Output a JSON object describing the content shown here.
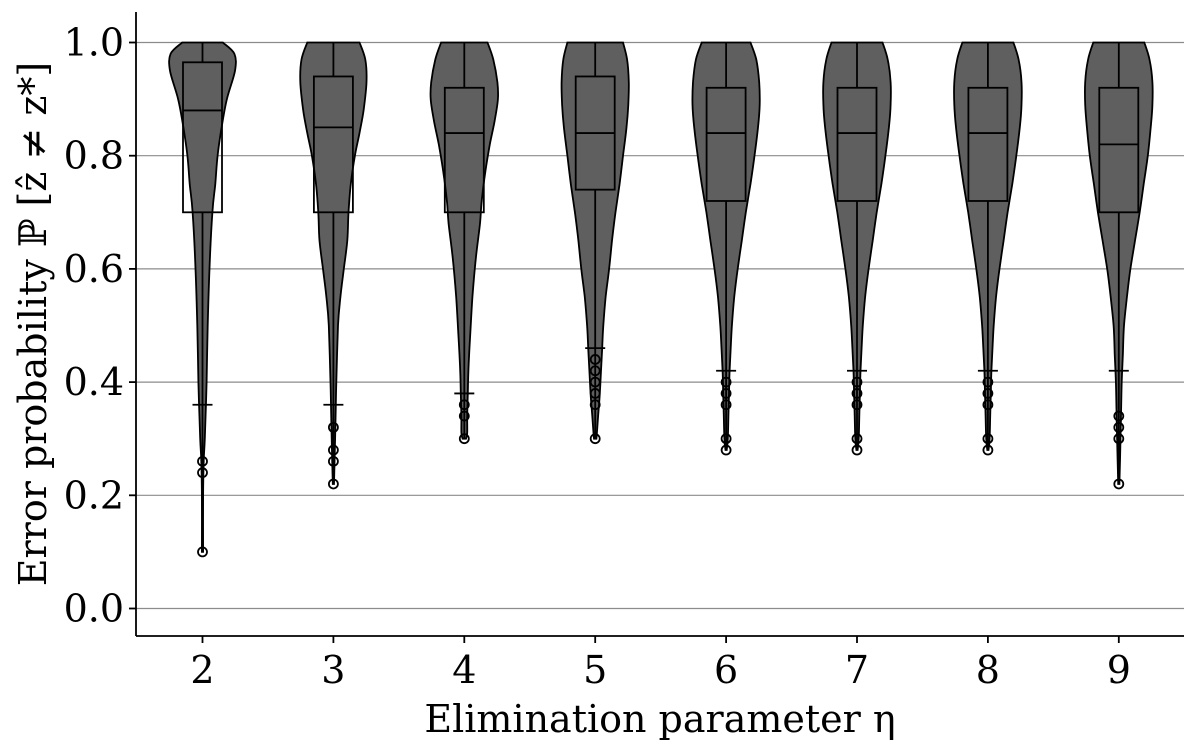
{
  "chart_data": {
    "type": "violin",
    "xlabel": "Elimination parameter η",
    "ylabel": "Error probability ℙ [ẑ ≠ z*]",
    "categories": [
      "2",
      "3",
      "4",
      "5",
      "6",
      "7",
      "8",
      "9"
    ],
    "ylim": [
      -0.05,
      1.05
    ],
    "yticks": [
      "0.0",
      "0.2",
      "0.4",
      "0.6",
      "0.8",
      "1.0"
    ],
    "ytick_values": [
      0.0,
      0.2,
      0.4,
      0.6,
      0.8,
      1.0
    ],
    "grid": "horizontal",
    "fill_color": "#5f5f5f",
    "series": [
      {
        "box": {
          "q1": 0.7,
          "median": 0.88,
          "q3": 0.965,
          "whisker_low": 0.36,
          "whisker_high": 1.0
        },
        "outliers": [
          0.26,
          0.24,
          0.1
        ],
        "min": 0.1,
        "profile": [
          [
            1.0,
            0.35
          ],
          [
            0.98,
            0.55
          ],
          [
            0.95,
            0.56
          ],
          [
            0.9,
            0.42
          ],
          [
            0.85,
            0.33
          ],
          [
            0.8,
            0.26
          ],
          [
            0.75,
            0.22
          ],
          [
            0.7,
            0.17
          ],
          [
            0.6,
            0.12
          ],
          [
            0.5,
            0.09
          ],
          [
            0.4,
            0.07
          ],
          [
            0.3,
            0.04
          ],
          [
            0.26,
            0.02
          ],
          [
            0.2,
            0.01
          ],
          [
            0.1,
            0.01
          ]
        ]
      },
      {
        "box": {
          "q1": 0.7,
          "median": 0.85,
          "q3": 0.94,
          "whisker_low": 0.36,
          "whisker_high": 1.0
        },
        "outliers": [
          0.32,
          0.28,
          0.26,
          0.22
        ],
        "min": 0.22,
        "profile": [
          [
            1.0,
            0.45
          ],
          [
            0.97,
            0.55
          ],
          [
            0.93,
            0.57
          ],
          [
            0.88,
            0.52
          ],
          [
            0.84,
            0.45
          ],
          [
            0.8,
            0.37
          ],
          [
            0.75,
            0.3
          ],
          [
            0.7,
            0.26
          ],
          [
            0.65,
            0.24
          ],
          [
            0.6,
            0.18
          ],
          [
            0.55,
            0.12
          ],
          [
            0.5,
            0.08
          ],
          [
            0.4,
            0.05
          ],
          [
            0.35,
            0.04
          ],
          [
            0.3,
            0.03
          ],
          [
            0.22,
            0.01
          ]
        ]
      },
      {
        "box": {
          "q1": 0.7,
          "median": 0.84,
          "q3": 0.92,
          "whisker_low": 0.38,
          "whisker_high": 1.0
        },
        "outliers": [
          0.36,
          0.34,
          0.3
        ],
        "min": 0.3,
        "profile": [
          [
            1.0,
            0.4
          ],
          [
            0.97,
            0.5
          ],
          [
            0.93,
            0.57
          ],
          [
            0.9,
            0.58
          ],
          [
            0.86,
            0.52
          ],
          [
            0.82,
            0.44
          ],
          [
            0.77,
            0.36
          ],
          [
            0.72,
            0.3
          ],
          [
            0.68,
            0.27
          ],
          [
            0.62,
            0.2
          ],
          [
            0.55,
            0.14
          ],
          [
            0.48,
            0.1
          ],
          [
            0.42,
            0.07
          ],
          [
            0.38,
            0.06
          ],
          [
            0.34,
            0.05
          ],
          [
            0.31,
            0.05
          ],
          [
            0.3,
            0.03
          ]
        ]
      },
      {
        "box": {
          "q1": 0.74,
          "median": 0.84,
          "q3": 0.94,
          "whisker_low": 0.46,
          "whisker_high": 1.0
        },
        "outliers": [
          0.44,
          0.42,
          0.4,
          0.38,
          0.36,
          0.3
        ],
        "min": 0.3,
        "profile": [
          [
            1.0,
            0.48
          ],
          [
            0.97,
            0.55
          ],
          [
            0.93,
            0.58
          ],
          [
            0.89,
            0.57
          ],
          [
            0.85,
            0.54
          ],
          [
            0.8,
            0.48
          ],
          [
            0.75,
            0.42
          ],
          [
            0.7,
            0.35
          ],
          [
            0.65,
            0.29
          ],
          [
            0.6,
            0.24
          ],
          [
            0.55,
            0.18
          ],
          [
            0.5,
            0.14
          ],
          [
            0.46,
            0.12
          ],
          [
            0.42,
            0.1
          ],
          [
            0.38,
            0.08
          ],
          [
            0.34,
            0.05
          ],
          [
            0.31,
            0.03
          ],
          [
            0.3,
            0.02
          ]
        ]
      },
      {
        "box": {
          "q1": 0.72,
          "median": 0.84,
          "q3": 0.92,
          "whisker_low": 0.42,
          "whisker_high": 1.0
        },
        "outliers": [
          0.4,
          0.38,
          0.36,
          0.3,
          0.28
        ],
        "min": 0.28,
        "profile": [
          [
            1.0,
            0.42
          ],
          [
            0.97,
            0.52
          ],
          [
            0.93,
            0.57
          ],
          [
            0.89,
            0.58
          ],
          [
            0.85,
            0.55
          ],
          [
            0.8,
            0.49
          ],
          [
            0.75,
            0.42
          ],
          [
            0.7,
            0.34
          ],
          [
            0.65,
            0.27
          ],
          [
            0.6,
            0.2
          ],
          [
            0.55,
            0.14
          ],
          [
            0.5,
            0.1
          ],
          [
            0.46,
            0.08
          ],
          [
            0.42,
            0.06
          ],
          [
            0.38,
            0.05
          ],
          [
            0.34,
            0.04
          ],
          [
            0.3,
            0.03
          ],
          [
            0.28,
            0.01
          ]
        ]
      },
      {
        "box": {
          "q1": 0.72,
          "median": 0.84,
          "q3": 0.92,
          "whisker_low": 0.42,
          "whisker_high": 1.0
        },
        "outliers": [
          0.4,
          0.38,
          0.36,
          0.3,
          0.28
        ],
        "min": 0.28,
        "profile": [
          [
            1.0,
            0.44
          ],
          [
            0.97,
            0.53
          ],
          [
            0.93,
            0.58
          ],
          [
            0.89,
            0.58
          ],
          [
            0.85,
            0.55
          ],
          [
            0.8,
            0.49
          ],
          [
            0.75,
            0.42
          ],
          [
            0.7,
            0.34
          ],
          [
            0.65,
            0.27
          ],
          [
            0.6,
            0.2
          ],
          [
            0.55,
            0.14
          ],
          [
            0.5,
            0.1
          ],
          [
            0.46,
            0.08
          ],
          [
            0.42,
            0.06
          ],
          [
            0.38,
            0.05
          ],
          [
            0.34,
            0.04
          ],
          [
            0.3,
            0.03
          ],
          [
            0.28,
            0.01
          ]
        ]
      },
      {
        "box": {
          "q1": 0.72,
          "median": 0.84,
          "q3": 0.92,
          "whisker_low": 0.42,
          "whisker_high": 1.0
        },
        "outliers": [
          0.4,
          0.38,
          0.36,
          0.3,
          0.28
        ],
        "min": 0.28,
        "profile": [
          [
            1.0,
            0.44
          ],
          [
            0.97,
            0.53
          ],
          [
            0.93,
            0.58
          ],
          [
            0.89,
            0.58
          ],
          [
            0.85,
            0.55
          ],
          [
            0.8,
            0.49
          ],
          [
            0.75,
            0.42
          ],
          [
            0.7,
            0.34
          ],
          [
            0.65,
            0.27
          ],
          [
            0.6,
            0.2
          ],
          [
            0.55,
            0.14
          ],
          [
            0.5,
            0.1
          ],
          [
            0.46,
            0.08
          ],
          [
            0.42,
            0.06
          ],
          [
            0.38,
            0.05
          ],
          [
            0.34,
            0.04
          ],
          [
            0.3,
            0.03
          ],
          [
            0.28,
            0.01
          ]
        ]
      },
      {
        "box": {
          "q1": 0.7,
          "median": 0.82,
          "q3": 0.92,
          "whisker_low": 0.42,
          "whisker_high": 1.0
        },
        "outliers": [
          0.34,
          0.32,
          0.3,
          0.22
        ],
        "min": 0.22,
        "profile": [
          [
            1.0,
            0.44
          ],
          [
            0.97,
            0.53
          ],
          [
            0.93,
            0.58
          ],
          [
            0.89,
            0.58
          ],
          [
            0.85,
            0.55
          ],
          [
            0.8,
            0.5
          ],
          [
            0.75,
            0.43
          ],
          [
            0.7,
            0.36
          ],
          [
            0.65,
            0.28
          ],
          [
            0.6,
            0.2
          ],
          [
            0.55,
            0.14
          ],
          [
            0.5,
            0.09
          ],
          [
            0.45,
            0.07
          ],
          [
            0.4,
            0.05
          ],
          [
            0.35,
            0.04
          ],
          [
            0.3,
            0.03
          ],
          [
            0.22,
            0.01
          ]
        ]
      }
    ]
  }
}
